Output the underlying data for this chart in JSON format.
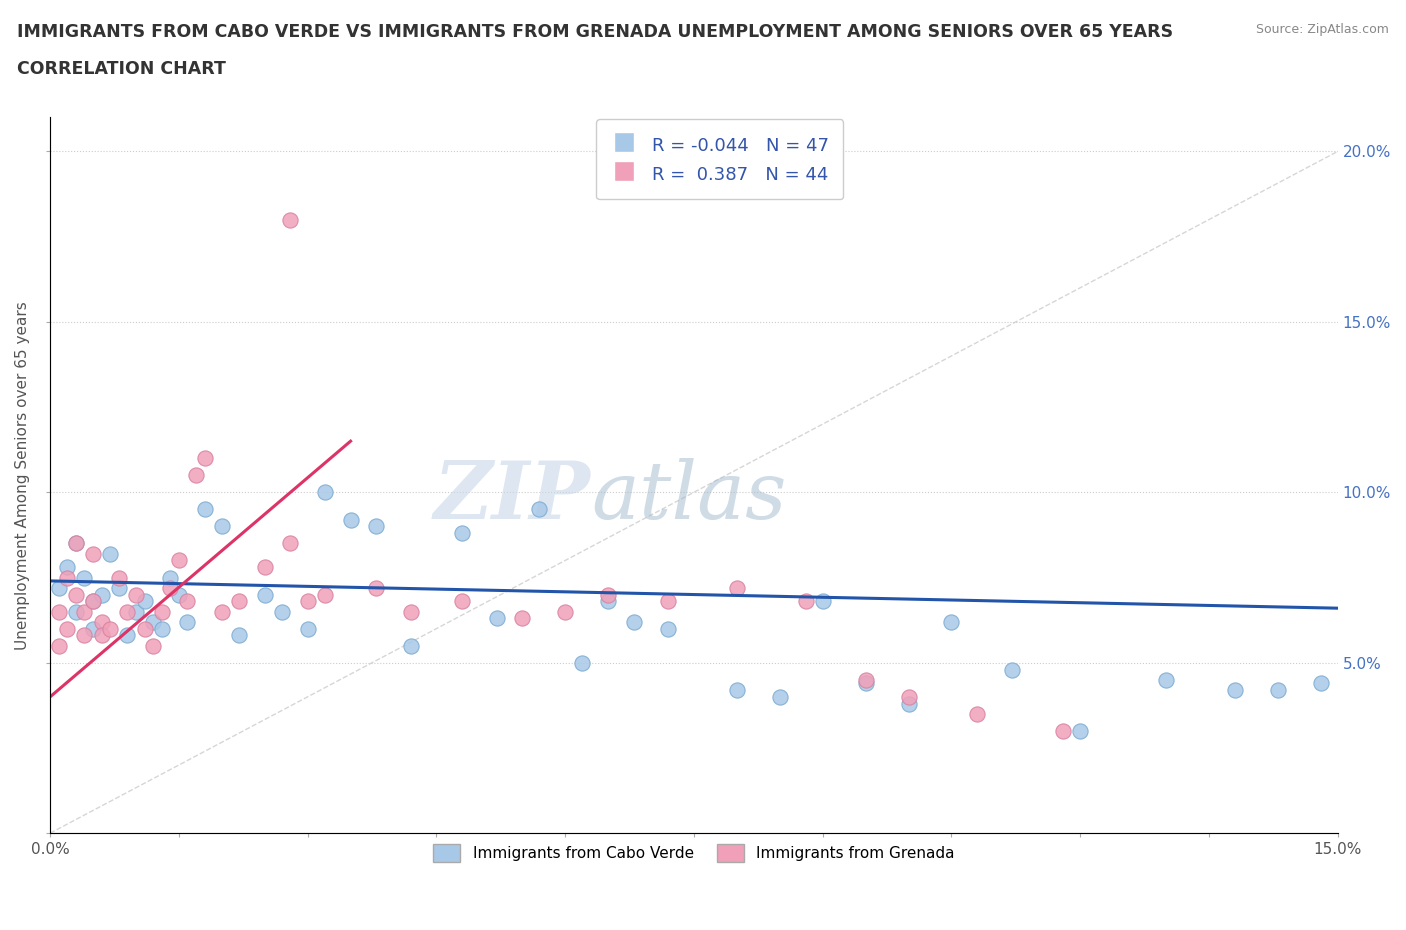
{
  "title_line1": "IMMIGRANTS FROM CABO VERDE VS IMMIGRANTS FROM GRENADA UNEMPLOYMENT AMONG SENIORS OVER 65 YEARS",
  "title_line2": "CORRELATION CHART",
  "source": "Source: ZipAtlas.com",
  "ylabel": "Unemployment Among Seniors over 65 years",
  "xlim": [
    0.0,
    0.15
  ],
  "ylim": [
    0.0,
    0.21
  ],
  "xticks": [
    0.0,
    0.015,
    0.03,
    0.045,
    0.06,
    0.075,
    0.09,
    0.105,
    0.12,
    0.135,
    0.15
  ],
  "xticklabels": [
    "0.0%",
    "",
    "",
    "",
    "",
    "",
    "",
    "",
    "",
    "",
    "15.0%"
  ],
  "yticks": [
    0.0,
    0.05,
    0.1,
    0.15,
    0.2
  ],
  "yticklabels": [
    "",
    "5.0%",
    "10.0%",
    "15.0%",
    "20.0%"
  ],
  "color_blue": "#a8c8e8",
  "color_pink": "#f0a0b8",
  "color_blue_line": "#2255aa",
  "color_pink_line": "#dd3366",
  "color_ref_line": "#cccccc",
  "R_blue": -0.044,
  "N_blue": 47,
  "R_pink": 0.387,
  "N_pink": 44,
  "legend_label_blue": "Immigrants from Cabo Verde",
  "legend_label_pink": "Immigrants from Grenada",
  "watermark_zip": "ZIP",
  "watermark_atlas": "atlas",
  "blue_trend_x0": 0.0,
  "blue_trend_y0": 0.074,
  "blue_trend_x1": 0.15,
  "blue_trend_y1": 0.066,
  "pink_trend_x0": 0.0,
  "pink_trend_y0": 0.04,
  "pink_trend_x1": 0.035,
  "pink_trend_y1": 0.115,
  "cabo_verde_x": [
    0.001,
    0.002,
    0.003,
    0.003,
    0.004,
    0.005,
    0.005,
    0.006,
    0.007,
    0.008,
    0.009,
    0.01,
    0.011,
    0.012,
    0.013,
    0.014,
    0.015,
    0.016,
    0.018,
    0.02,
    0.022,
    0.025,
    0.027,
    0.03,
    0.032,
    0.035,
    0.038,
    0.042,
    0.048,
    0.052,
    0.057,
    0.062,
    0.065,
    0.068,
    0.072,
    0.08,
    0.085,
    0.09,
    0.095,
    0.1,
    0.105,
    0.112,
    0.12,
    0.13,
    0.138,
    0.143,
    0.148
  ],
  "cabo_verde_y": [
    0.072,
    0.078,
    0.085,
    0.065,
    0.075,
    0.068,
    0.06,
    0.07,
    0.082,
    0.072,
    0.058,
    0.065,
    0.068,
    0.062,
    0.06,
    0.075,
    0.07,
    0.062,
    0.095,
    0.09,
    0.058,
    0.07,
    0.065,
    0.06,
    0.1,
    0.092,
    0.09,
    0.055,
    0.088,
    0.063,
    0.095,
    0.05,
    0.068,
    0.062,
    0.06,
    0.042,
    0.04,
    0.068,
    0.044,
    0.038,
    0.062,
    0.048,
    0.03,
    0.045,
    0.042,
    0.042,
    0.044
  ],
  "grenada_x": [
    0.001,
    0.001,
    0.002,
    0.002,
    0.003,
    0.003,
    0.004,
    0.004,
    0.005,
    0.005,
    0.006,
    0.006,
    0.007,
    0.008,
    0.009,
    0.01,
    0.011,
    0.012,
    0.013,
    0.014,
    0.015,
    0.016,
    0.017,
    0.018,
    0.02,
    0.022,
    0.025,
    0.028,
    0.032,
    0.038,
    0.042,
    0.048,
    0.055,
    0.06,
    0.065,
    0.072,
    0.08,
    0.088,
    0.095,
    0.1,
    0.108,
    0.118,
    0.028,
    0.03
  ],
  "grenada_y": [
    0.065,
    0.055,
    0.075,
    0.06,
    0.085,
    0.07,
    0.058,
    0.065,
    0.082,
    0.068,
    0.062,
    0.058,
    0.06,
    0.075,
    0.065,
    0.07,
    0.06,
    0.055,
    0.065,
    0.072,
    0.08,
    0.068,
    0.105,
    0.11,
    0.065,
    0.068,
    0.078,
    0.085,
    0.07,
    0.072,
    0.065,
    0.068,
    0.063,
    0.065,
    0.07,
    0.068,
    0.072,
    0.068,
    0.045,
    0.04,
    0.035,
    0.03,
    0.18,
    0.068
  ]
}
